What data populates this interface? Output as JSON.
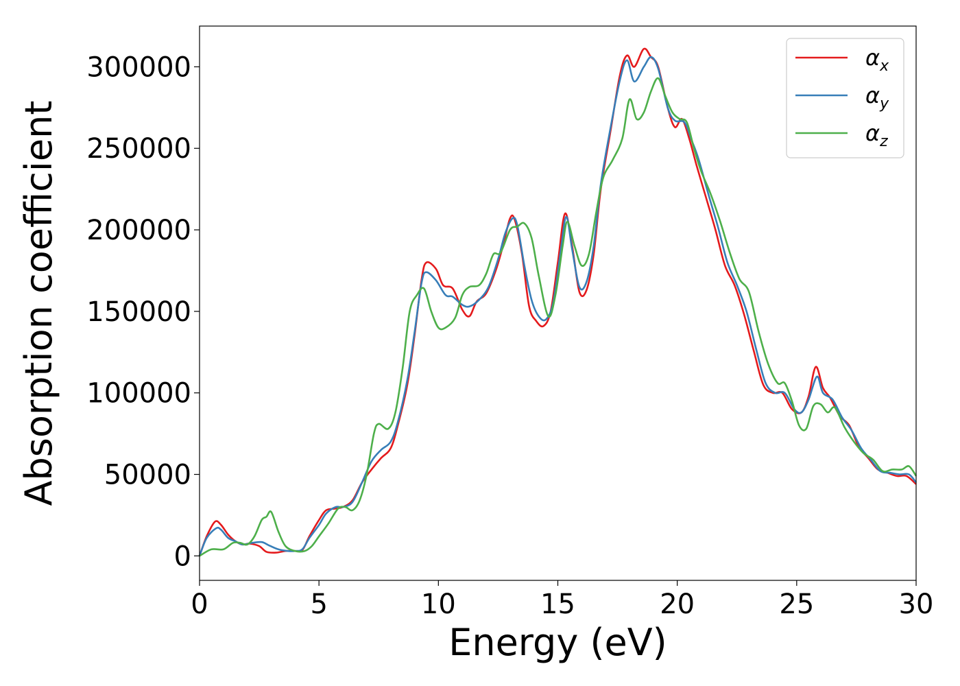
{
  "chart_data": {
    "type": "line",
    "xlabel": "Energy (eV)",
    "ylabel": "Absorption coefficient",
    "xlim": [
      0,
      30
    ],
    "ylim": [
      -15000,
      325000
    ],
    "xticks": [
      0,
      5,
      10,
      15,
      20,
      25,
      30
    ],
    "yticks": [
      0,
      50000,
      100000,
      150000,
      200000,
      250000,
      300000
    ],
    "grid": false,
    "legend_position": "top-right",
    "series": [
      {
        "name": "α_x",
        "base": "α",
        "sub": "x",
        "color": "#e41a1c",
        "points": [
          [
            0,
            0
          ],
          [
            0.3,
            12000
          ],
          [
            0.65,
            21000
          ],
          [
            0.9,
            19000
          ],
          [
            1.2,
            13000
          ],
          [
            1.5,
            9000
          ],
          [
            1.8,
            7000
          ],
          [
            2.1,
            7500
          ],
          [
            2.5,
            6000
          ],
          [
            2.8,
            2500
          ],
          [
            3.2,
            2000
          ],
          [
            3.6,
            3000
          ],
          [
            4.0,
            3000
          ],
          [
            4.3,
            3500
          ],
          [
            4.6,
            12000
          ],
          [
            5.0,
            22000
          ],
          [
            5.3,
            28000
          ],
          [
            5.7,
            29000
          ],
          [
            6.0,
            30000
          ],
          [
            6.4,
            34000
          ],
          [
            6.8,
            45000
          ],
          [
            7.2,
            53000
          ],
          [
            7.6,
            60000
          ],
          [
            8.0,
            66000
          ],
          [
            8.3,
            80000
          ],
          [
            8.7,
            105000
          ],
          [
            9.0,
            135000
          ],
          [
            9.3,
            170000
          ],
          [
            9.5,
            180000
          ],
          [
            9.9,
            176000
          ],
          [
            10.2,
            166000
          ],
          [
            10.6,
            164000
          ],
          [
            11.0,
            151000
          ],
          [
            11.3,
            147000
          ],
          [
            11.6,
            156000
          ],
          [
            12.0,
            161000
          ],
          [
            12.4,
            175000
          ],
          [
            12.7,
            190000
          ],
          [
            13.0,
            207000
          ],
          [
            13.2,
            206000
          ],
          [
            13.5,
            185000
          ],
          [
            13.8,
            153000
          ],
          [
            14.1,
            144000
          ],
          [
            14.4,
            141000
          ],
          [
            14.7,
            150000
          ],
          [
            15.0,
            180000
          ],
          [
            15.3,
            210000
          ],
          [
            15.6,
            190000
          ],
          [
            15.9,
            162000
          ],
          [
            16.2,
            163000
          ],
          [
            16.5,
            185000
          ],
          [
            16.8,
            225000
          ],
          [
            17.2,
            260000
          ],
          [
            17.6,
            295000
          ],
          [
            17.9,
            307000
          ],
          [
            18.2,
            300000
          ],
          [
            18.6,
            311000
          ],
          [
            18.9,
            306000
          ],
          [
            19.2,
            300000
          ],
          [
            19.6,
            275000
          ],
          [
            19.9,
            263000
          ],
          [
            20.2,
            268000
          ],
          [
            20.5,
            256000
          ],
          [
            20.8,
            240000
          ],
          [
            21.2,
            220000
          ],
          [
            21.6,
            200000
          ],
          [
            22.0,
            178000
          ],
          [
            22.4,
            166000
          ],
          [
            22.8,
            148000
          ],
          [
            23.2,
            126000
          ],
          [
            23.6,
            105000
          ],
          [
            24.0,
            100000
          ],
          [
            24.4,
            100000
          ],
          [
            24.8,
            90000
          ],
          [
            25.2,
            88000
          ],
          [
            25.5,
            98000
          ],
          [
            25.8,
            116000
          ],
          [
            26.1,
            103000
          ],
          [
            26.4,
            97000
          ],
          [
            26.8,
            86000
          ],
          [
            27.2,
            80000
          ],
          [
            27.6,
            67000
          ],
          [
            28.0,
            60000
          ],
          [
            28.4,
            53000
          ],
          [
            28.8,
            51000
          ],
          [
            29.2,
            49000
          ],
          [
            29.6,
            49000
          ],
          [
            30.0,
            44000
          ]
        ]
      },
      {
        "name": "α_y",
        "base": "α",
        "sub": "y",
        "color": "#377eb8",
        "points": [
          [
            0,
            0
          ],
          [
            0.3,
            11000
          ],
          [
            0.7,
            17000
          ],
          [
            0.9,
            16000
          ],
          [
            1.2,
            11000
          ],
          [
            1.5,
            9000
          ],
          [
            1.8,
            7000
          ],
          [
            2.2,
            8000
          ],
          [
            2.6,
            8500
          ],
          [
            2.9,
            6500
          ],
          [
            3.3,
            4000
          ],
          [
            3.7,
            3000
          ],
          [
            4.0,
            3000
          ],
          [
            4.3,
            4000
          ],
          [
            4.6,
            11000
          ],
          [
            5.0,
            19000
          ],
          [
            5.3,
            26000
          ],
          [
            5.7,
            30000
          ],
          [
            6.0,
            30000
          ],
          [
            6.4,
            33000
          ],
          [
            6.8,
            45000
          ],
          [
            7.2,
            58000
          ],
          [
            7.6,
            65000
          ],
          [
            8.0,
            70000
          ],
          [
            8.3,
            82000
          ],
          [
            8.7,
            108000
          ],
          [
            9.0,
            137000
          ],
          [
            9.3,
            168000
          ],
          [
            9.5,
            174000
          ],
          [
            9.9,
            169000
          ],
          [
            10.3,
            160000
          ],
          [
            10.6,
            159000
          ],
          [
            11.0,
            154000
          ],
          [
            11.3,
            153000
          ],
          [
            11.7,
            157000
          ],
          [
            12.1,
            165000
          ],
          [
            12.5,
            182000
          ],
          [
            12.8,
            198000
          ],
          [
            13.1,
            207000
          ],
          [
            13.3,
            203000
          ],
          [
            13.6,
            178000
          ],
          [
            13.9,
            157000
          ],
          [
            14.2,
            147000
          ],
          [
            14.5,
            145000
          ],
          [
            14.8,
            155000
          ],
          [
            15.1,
            185000
          ],
          [
            15.35,
            208000
          ],
          [
            15.6,
            188000
          ],
          [
            15.9,
            165000
          ],
          [
            16.2,
            168000
          ],
          [
            16.5,
            190000
          ],
          [
            16.8,
            228000
          ],
          [
            17.2,
            262000
          ],
          [
            17.6,
            292000
          ],
          [
            17.9,
            304000
          ],
          [
            18.2,
            291000
          ],
          [
            18.6,
            300000
          ],
          [
            18.9,
            306000
          ],
          [
            19.2,
            299000
          ],
          [
            19.6,
            275000
          ],
          [
            19.9,
            267000
          ],
          [
            20.3,
            266000
          ],
          [
            20.6,
            255000
          ],
          [
            20.9,
            243000
          ],
          [
            21.3,
            222000
          ],
          [
            21.7,
            202000
          ],
          [
            22.1,
            180000
          ],
          [
            22.5,
            166000
          ],
          [
            22.9,
            150000
          ],
          [
            23.3,
            127000
          ],
          [
            23.7,
            106000
          ],
          [
            24.1,
            100000
          ],
          [
            24.5,
            100000
          ],
          [
            24.9,
            90000
          ],
          [
            25.2,
            88000
          ],
          [
            25.5,
            96000
          ],
          [
            25.85,
            110000
          ],
          [
            26.1,
            100000
          ],
          [
            26.5,
            96000
          ],
          [
            26.9,
            85000
          ],
          [
            27.3,
            77000
          ],
          [
            27.7,
            66000
          ],
          [
            28.1,
            59000
          ],
          [
            28.5,
            52000
          ],
          [
            28.9,
            51000
          ],
          [
            29.3,
            50000
          ],
          [
            29.7,
            50000
          ],
          [
            30.0,
            45000
          ]
        ]
      },
      {
        "name": "α_z",
        "base": "α",
        "sub": "z",
        "color": "#4daf4a",
        "points": [
          [
            0,
            0
          ],
          [
            0.5,
            4000
          ],
          [
            1.0,
            4000
          ],
          [
            1.4,
            8000
          ],
          [
            1.7,
            8000
          ],
          [
            2.0,
            7000
          ],
          [
            2.3,
            12000
          ],
          [
            2.6,
            22000
          ],
          [
            2.8,
            24000
          ],
          [
            3.0,
            27000
          ],
          [
            3.3,
            15000
          ],
          [
            3.6,
            6000
          ],
          [
            4.0,
            3000
          ],
          [
            4.4,
            3000
          ],
          [
            4.7,
            6000
          ],
          [
            5.0,
            12000
          ],
          [
            5.4,
            20000
          ],
          [
            5.8,
            29000
          ],
          [
            6.1,
            30000
          ],
          [
            6.4,
            28000
          ],
          [
            6.7,
            34000
          ],
          [
            7.0,
            50000
          ],
          [
            7.3,
            75000
          ],
          [
            7.5,
            81000
          ],
          [
            7.9,
            78000
          ],
          [
            8.2,
            88000
          ],
          [
            8.5,
            115000
          ],
          [
            8.8,
            150000
          ],
          [
            9.1,
            160000
          ],
          [
            9.4,
            164000
          ],
          [
            9.7,
            150000
          ],
          [
            10.0,
            140000
          ],
          [
            10.3,
            140000
          ],
          [
            10.7,
            146000
          ],
          [
            11.0,
            160000
          ],
          [
            11.3,
            165000
          ],
          [
            11.7,
            166000
          ],
          [
            12.0,
            173000
          ],
          [
            12.3,
            185000
          ],
          [
            12.6,
            186000
          ],
          [
            13.0,
            200000
          ],
          [
            13.3,
            202000
          ],
          [
            13.6,
            204000
          ],
          [
            13.9,
            195000
          ],
          [
            14.2,
            172000
          ],
          [
            14.6,
            147000
          ],
          [
            14.9,
            160000
          ],
          [
            15.2,
            190000
          ],
          [
            15.4,
            205000
          ],
          [
            15.7,
            190000
          ],
          [
            16.0,
            178000
          ],
          [
            16.3,
            185000
          ],
          [
            16.6,
            210000
          ],
          [
            16.9,
            232000
          ],
          [
            17.3,
            243000
          ],
          [
            17.7,
            256000
          ],
          [
            18.0,
            280000
          ],
          [
            18.3,
            268000
          ],
          [
            18.6,
            272000
          ],
          [
            18.9,
            285000
          ],
          [
            19.2,
            293000
          ],
          [
            19.5,
            282000
          ],
          [
            19.8,
            272000
          ],
          [
            20.1,
            268000
          ],
          [
            20.4,
            266000
          ],
          [
            20.7,
            250000
          ],
          [
            21.0,
            236000
          ],
          [
            21.4,
            222000
          ],
          [
            21.8,
            205000
          ],
          [
            22.2,
            186000
          ],
          [
            22.6,
            170000
          ],
          [
            23.0,
            162000
          ],
          [
            23.4,
            138000
          ],
          [
            23.8,
            118000
          ],
          [
            24.2,
            106000
          ],
          [
            24.5,
            106000
          ],
          [
            24.8,
            95000
          ],
          [
            25.1,
            80000
          ],
          [
            25.4,
            78000
          ],
          [
            25.7,
            92000
          ],
          [
            26.0,
            93000
          ],
          [
            26.3,
            88000
          ],
          [
            26.6,
            91000
          ],
          [
            27.0,
            79000
          ],
          [
            27.4,
            70000
          ],
          [
            27.8,
            63000
          ],
          [
            28.2,
            59000
          ],
          [
            28.6,
            52000
          ],
          [
            29.0,
            53000
          ],
          [
            29.4,
            53000
          ],
          [
            29.7,
            55000
          ],
          [
            30.0,
            49000
          ]
        ]
      }
    ]
  }
}
